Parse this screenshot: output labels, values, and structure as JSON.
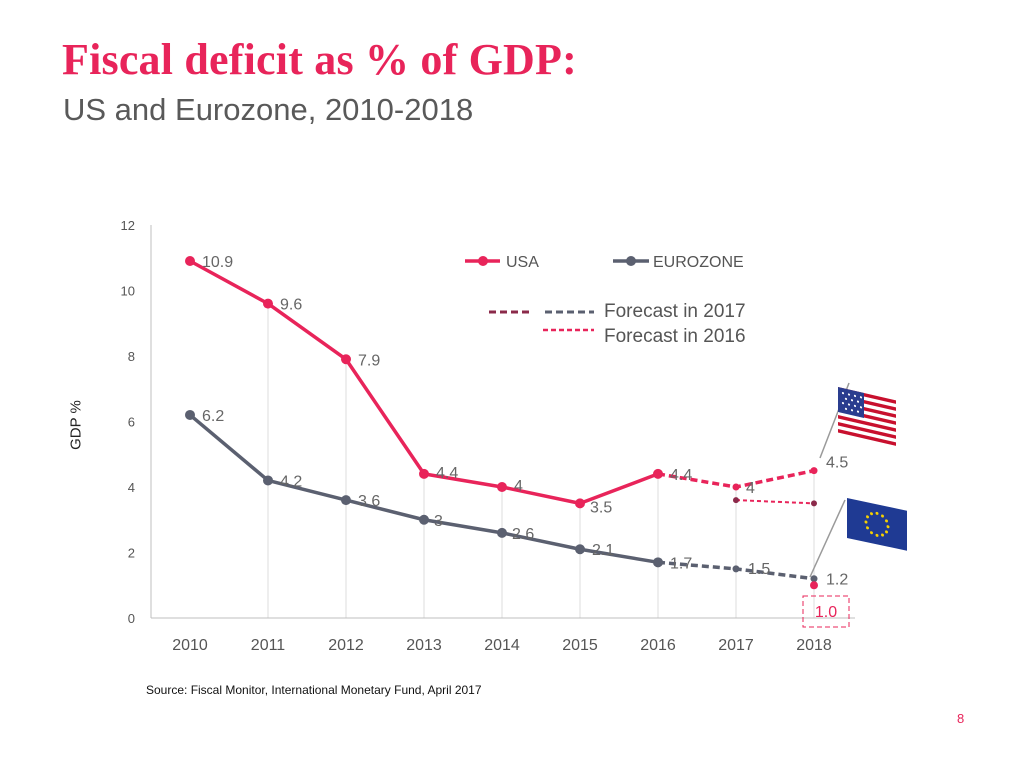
{
  "header": {
    "title": "Fiscal deficit as % of GDP:",
    "subtitle": "US and Eurozone, 2010-2018"
  },
  "footer": {
    "source": "Source: Fiscal Monitor, International Monetary Fund, April 2017",
    "page_number": "8"
  },
  "colors": {
    "usa": "#e8245a",
    "eurozone": "#5b6070",
    "forecast_2017_usa": "#8b2a4a",
    "forecast_2016": "#e8245a"
  },
  "chart_data": {
    "type": "line",
    "title": "Fiscal deficit as % of GDP",
    "xlabel": "",
    "ylabel": "GDP %",
    "ylim": [
      0,
      12
    ],
    "yticks": [
      0,
      2,
      4,
      6,
      8,
      10,
      12
    ],
    "categories": [
      "2010",
      "2011",
      "2012",
      "2013",
      "2014",
      "2015",
      "2016",
      "2017",
      "2018"
    ],
    "series": [
      {
        "name": "USA",
        "actual": [
          10.9,
          9.6,
          7.9,
          4.4,
          4,
          3.5,
          4.4
        ],
        "labels": [
          "10.9",
          "9.6",
          "7.9",
          "4.4",
          "4",
          "3.5",
          "4.4"
        ],
        "forecast_2017": [
          4.4,
          4,
          4.5
        ],
        "forecast_2017_labels": [
          "",
          "4",
          "4.5"
        ],
        "forecast_2016": [
          3.6,
          3.5
        ]
      },
      {
        "name": "EUROZONE",
        "actual": [
          6.2,
          4.2,
          3.6,
          3,
          2.6,
          2.1,
          1.7
        ],
        "labels": [
          "6.2",
          "4.2",
          "3.6",
          "3",
          "2.6",
          "2.1",
          "1.7"
        ],
        "forecast_2017": [
          1.7,
          1.5,
          1.2
        ],
        "forecast_2017_labels": [
          "",
          "1.5",
          "1.2"
        ],
        "forecast_2016": [
          1.0
        ],
        "forecast_2016_labels": [
          "1.0"
        ]
      }
    ],
    "legend": {
      "usa": "USA",
      "eurozone": "EUROZONE",
      "forecast_2017": "Forecast in 2017",
      "forecast_2016": "Forecast in 2016"
    },
    "grid": "vertical drop lines"
  }
}
